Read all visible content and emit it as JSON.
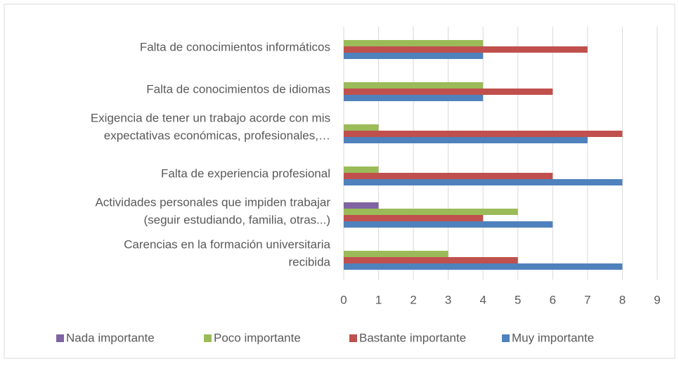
{
  "chart_data": {
    "type": "bar",
    "orientation": "horizontal",
    "categories": [
      "Falta de conocimientos informáticos",
      "Falta de conocimientos de idiomas",
      "Exigencia de tener un trabajo acorde con mis\nexpectativas económicas, profesionales,…",
      "Falta de experiencia profesional",
      "Actividades personales que impiden trabajar\n(seguir estudiando, familia, otras...)",
      "Carencias en la formación universitaria\nrecibida"
    ],
    "series": [
      {
        "name": "Nada importante",
        "color": "#8064a2",
        "values": [
          0,
          0,
          0,
          0,
          1,
          0
        ]
      },
      {
        "name": "Poco importante",
        "color": "#9bbb59",
        "values": [
          4,
          4,
          1,
          1,
          5,
          3
        ]
      },
      {
        "name": "Bastante importante",
        "color": "#c0504d",
        "values": [
          7,
          6,
          8,
          6,
          4,
          5
        ]
      },
      {
        "name": "Muy importante",
        "color": "#4f81bd",
        "values": [
          4,
          4,
          7,
          8,
          6,
          8
        ]
      }
    ],
    "xlim": [
      0,
      9
    ],
    "xticks": [
      0,
      1,
      2,
      3,
      4,
      5,
      6,
      7,
      8,
      9
    ],
    "grid": true,
    "legend": "bottom"
  }
}
